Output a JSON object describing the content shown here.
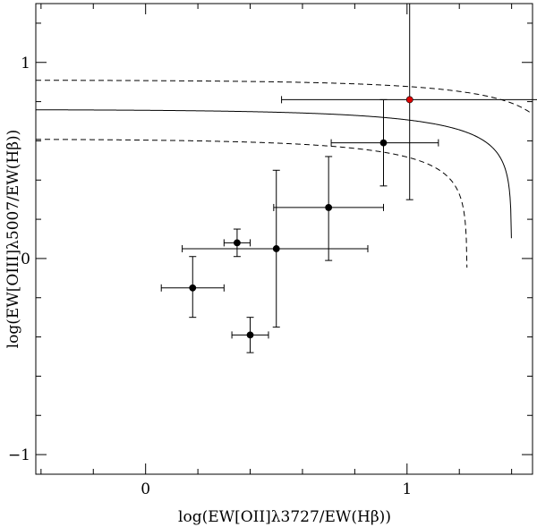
{
  "chart_data": {
    "type": "scatter",
    "xlabel": "log(EW[OII]λ3727/EW(Hβ))",
    "ylabel": "log(EW[OIII]λ5007/EW(Hβ))",
    "xlim": [
      -0.42,
      1.48
    ],
    "ylim": [
      -1.1,
      1.3
    ],
    "xticks": [
      {
        "value": 0,
        "label": "0"
      },
      {
        "value": 1,
        "label": "1"
      }
    ],
    "yticks": [
      {
        "value": -1,
        "label": "−1"
      },
      {
        "value": 0,
        "label": "0"
      },
      {
        "value": 1,
        "label": "1"
      }
    ],
    "grid": false,
    "legend": "none",
    "colors": {
      "points": "#000000",
      "highlight": "#e00000",
      "axes": "#000000"
    },
    "series": [
      {
        "color": "#000000",
        "points": [
          {
            "x": 0.18,
            "y": -0.15,
            "xerr": [
              0.12,
              0.12
            ],
            "yerr": [
              0.15,
              0.16
            ]
          },
          {
            "x": 0.35,
            "y": 0.08,
            "xerr": [
              0.05,
              0.05
            ],
            "yerr": [
              0.07,
              0.07
            ]
          },
          {
            "x": 0.4,
            "y": -0.39,
            "xerr": [
              0.07,
              0.07
            ],
            "yerr": [
              0.09,
              0.09
            ]
          },
          {
            "x": 0.5,
            "y": 0.05,
            "xerr": [
              0.36,
              0.35
            ],
            "yerr": [
              0.4,
              0.4
            ]
          },
          {
            "x": 0.7,
            "y": 0.26,
            "xerr": [
              0.21,
              0.21
            ],
            "yerr": [
              0.27,
              0.26
            ]
          },
          {
            "x": 0.91,
            "y": 0.59,
            "xerr": [
              0.2,
              0.21
            ],
            "yerr": [
              0.22,
              0.22
            ]
          }
        ]
      },
      {
        "color": "#e00000",
        "points": [
          {
            "x": 1.01,
            "y": 0.81,
            "xerr": [
              0.49,
              0.49
            ],
            "yerr": [
              0.51,
              0.49
            ]
          }
        ]
      }
    ],
    "curves": [
      {
        "style": "solid",
        "y0": 0.76,
        "xasym": 1.4,
        "k": 0.24
      },
      {
        "style": "dashed",
        "y0": 0.91,
        "xasym": 1.57,
        "k": 0.24
      },
      {
        "style": "dashed",
        "y0": 0.61,
        "xasym": 1.23,
        "k": 0.24
      }
    ]
  }
}
